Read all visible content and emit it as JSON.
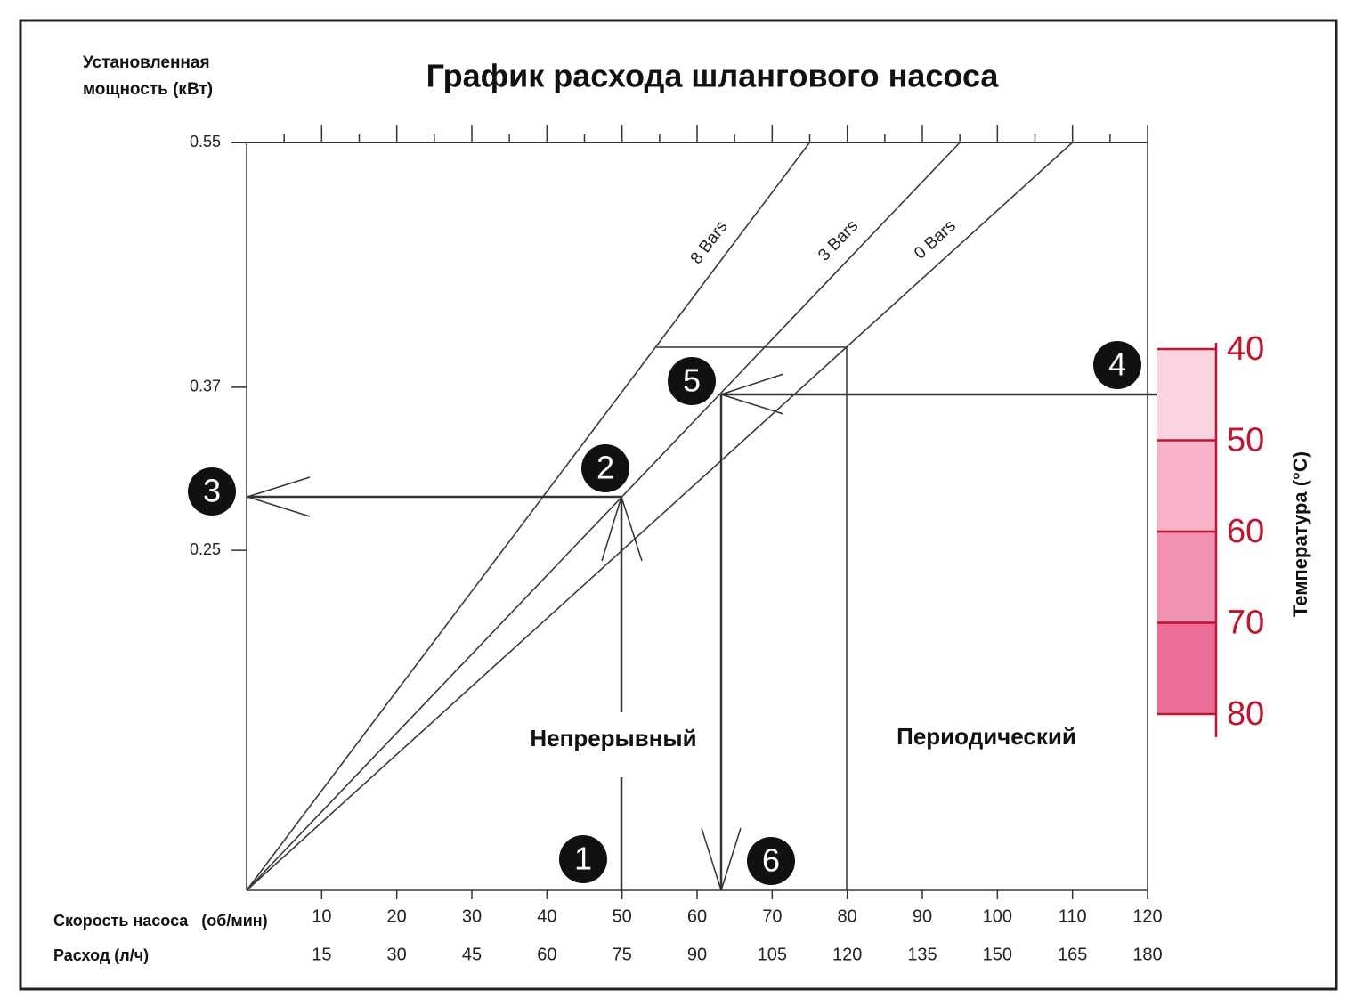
{
  "chart_data": {
    "type": "line",
    "title": "График расхода шлангового насоса",
    "ylabel": "Установленная мощность (кВт)",
    "xlabel": "Скорость насоса   (об/мин)",
    "x2label": "Расход (л/ч)",
    "xlim": [
      0,
      120
    ],
    "xticks": [
      10,
      20,
      30,
      40,
      50,
      60,
      70,
      80,
      90,
      100,
      110,
      120
    ],
    "x2ticks": [
      15,
      30,
      45,
      60,
      75,
      90,
      105,
      120,
      135,
      150,
      165,
      180
    ],
    "ylim": [
      0,
      0.55
    ],
    "yticks": [
      0.25,
      0.37,
      0.55
    ],
    "series": [
      {
        "name": "8 Bars",
        "color": "#3a3a3a",
        "x": [
          0,
          75
        ],
        "values": [
          0,
          0.55
        ]
      },
      {
        "name": "3 Bars",
        "color": "#3a3a3a",
        "x": [
          0,
          95
        ],
        "values": [
          0,
          0.55
        ]
      },
      {
        "name": "0 Bars",
        "color": "#3a3a3a",
        "x": [
          0,
          110
        ],
        "values": [
          0,
          0.55
        ]
      }
    ],
    "regions": [
      "Непрерывный",
      "Периодический"
    ],
    "markers": [
      "1",
      "2",
      "3",
      "4",
      "5",
      "6"
    ],
    "temperature": {
      "label": "Температура (°C)",
      "lim": [
        40,
        80
      ],
      "ticks": [
        40,
        50,
        60,
        70,
        80
      ],
      "colors": [
        "#f9d3e0",
        "#f6b3ca",
        "#f291b3",
        "#ee6c98"
      ],
      "axis_color": "#c0172f"
    }
  }
}
